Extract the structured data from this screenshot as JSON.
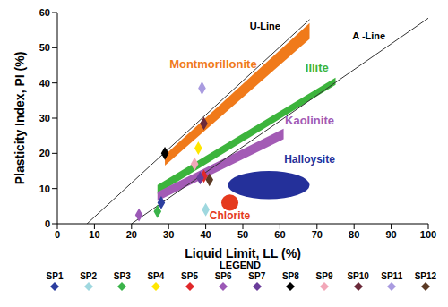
{
  "chart_data": {
    "type": "scatter",
    "x_label": "Liquid Limit, LL (%)",
    "y_label": "Plasticity Index, PI (%)",
    "xlim": [
      0,
      100
    ],
    "xticks": [
      0,
      10,
      20,
      30,
      40,
      50,
      60,
      70,
      80,
      90,
      100
    ],
    "ylim": [
      0,
      60
    ],
    "yticks": [
      0,
      10,
      20,
      30,
      40,
      50,
      60
    ],
    "grid": false,
    "marker": "diamond",
    "legend": "bottom",
    "legend_title": "LEGEND",
    "series": [
      {
        "name": "SP1",
        "color": "#2c3e9f",
        "x": [
          28
        ],
        "y": [
          6
        ]
      },
      {
        "name": "SP2",
        "color": "#9fd8df",
        "x": [
          40
        ],
        "y": [
          4
        ]
      },
      {
        "name": "SP3",
        "color": "#3bb34a",
        "x": [
          27
        ],
        "y": [
          3.5
        ]
      },
      {
        "name": "SP4",
        "color": "#ffe600",
        "x": [
          38
        ],
        "y": [
          21.5
        ]
      },
      {
        "name": "SP5",
        "color": "#e0282a",
        "x": [
          39.5
        ],
        "y": [
          13.5
        ]
      },
      {
        "name": "SP6",
        "color": "#9b59b6",
        "x": [
          22
        ],
        "y": [
          2.5
        ]
      },
      {
        "name": "SP7",
        "color": "#6a3d9a",
        "x": [
          38.5
        ],
        "y": [
          13
        ]
      },
      {
        "name": "SP8",
        "color": "#000000",
        "x": [
          29
        ],
        "y": [
          20
        ]
      },
      {
        "name": "SP9",
        "color": "#f2a7b8",
        "x": [
          37
        ],
        "y": [
          17
        ]
      },
      {
        "name": "SP10",
        "color": "#6b2a3a",
        "x": [
          39.5
        ],
        "y": [
          28.5
        ]
      },
      {
        "name": "SP11",
        "color": "#a99be0",
        "x": [
          39
        ],
        "y": [
          38.5
        ]
      },
      {
        "name": "SP12",
        "color": "#5b3a24",
        "x": [
          41
        ],
        "y": [
          12.5
        ]
      }
    ],
    "lines": [
      {
        "name": "U-Line",
        "x": [
          8,
          68
        ],
        "y": [
          0,
          58
        ],
        "color": "#333333",
        "label_at": [
          56,
          56
        ]
      },
      {
        "name": "A -Line",
        "x": [
          20,
          100
        ],
        "y": [
          0,
          58.4
        ],
        "color": "#333333",
        "label_at": [
          84,
          53
        ]
      }
    ],
    "regions": [
      {
        "name": "Montmorillonite",
        "color": "#f07a1a",
        "x": [
          29,
          68
        ],
        "lower": [
          16.5,
          52.5
        ],
        "upper": [
          19.5,
          57
        ],
        "label_at": [
          42,
          45
        ]
      },
      {
        "name": "Illite",
        "color": "#3cb43c",
        "x": [
          27,
          75
        ],
        "lower": [
          8.5,
          39.5
        ],
        "upper": [
          11,
          41.5
        ],
        "label_at": [
          70,
          44
        ]
      },
      {
        "name": "Kaolinite",
        "color": "#a35bb5",
        "x": [
          27,
          61
        ],
        "lower": [
          6.5,
          24
        ],
        "upper": [
          9,
          27
        ],
        "label_at": [
          68,
          29
        ]
      }
    ],
    "ellipses": [
      {
        "name": "Halloysite",
        "color": "#24309a",
        "center": [
          57,
          11
        ],
        "radius": [
          11,
          4
        ],
        "label_at": [
          68,
          18
        ]
      },
      {
        "name": "Chlorite",
        "color": "#e53a1e",
        "center": [
          46.5,
          6
        ],
        "radius": [
          2.3,
          2.3
        ],
        "label_at": [
          46.5,
          2
        ]
      }
    ]
  }
}
